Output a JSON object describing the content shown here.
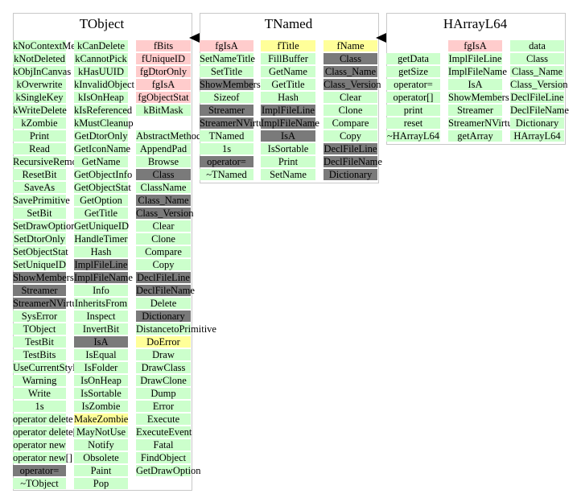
{
  "panels": [
    {
      "name": "tobject",
      "title": "TObject",
      "columns": [
        {
          "items": [
            {
              "text": "kNoContextMenu",
              "color": "green"
            },
            {
              "text": "kNotDeleted",
              "color": "green"
            },
            {
              "text": "kObjInCanvas",
              "color": "green"
            },
            {
              "text": "kOverwrite",
              "color": "green"
            },
            {
              "text": "kSingleKey",
              "color": "green"
            },
            {
              "text": "kWriteDelete",
              "color": "green"
            },
            {
              "text": "kZombie",
              "color": "green"
            },
            {
              "text": "Print",
              "color": "green"
            },
            {
              "text": "Read",
              "color": "green"
            },
            {
              "text": "RecursiveRemove",
              "color": "green"
            },
            {
              "text": "ResetBit",
              "color": "green"
            },
            {
              "text": "SaveAs",
              "color": "green"
            },
            {
              "text": "SavePrimitive",
              "color": "green"
            },
            {
              "text": "SetBit",
              "color": "green"
            },
            {
              "text": "SetDrawOption",
              "color": "green"
            },
            {
              "text": "SetDtorOnly",
              "color": "green"
            },
            {
              "text": "SetObjectStat",
              "color": "green"
            },
            {
              "text": "SetUniqueID",
              "color": "green"
            },
            {
              "text": "ShowMembers",
              "color": "gray"
            },
            {
              "text": "Streamer",
              "color": "gray"
            },
            {
              "text": "StreamerNVirtual",
              "color": "gray"
            },
            {
              "text": "SysError",
              "color": "green"
            },
            {
              "text": "TObject",
              "color": "green"
            },
            {
              "text": "TestBit",
              "color": "green"
            },
            {
              "text": "TestBits",
              "color": "green"
            },
            {
              "text": "UseCurrentStyle",
              "color": "green"
            },
            {
              "text": "Warning",
              "color": "green"
            },
            {
              "text": "Write",
              "color": "green"
            },
            {
              "text": "1s",
              "color": "green"
            },
            {
              "text": "operator delete",
              "color": "green"
            },
            {
              "text": "operator delete[]",
              "color": "green"
            },
            {
              "text": "operator new",
              "color": "green"
            },
            {
              "text": "operator new[]",
              "color": "green"
            },
            {
              "text": "operator=",
              "color": "gray"
            },
            {
              "text": "~TObject",
              "color": "green"
            }
          ]
        },
        {
          "items": [
            {
              "text": "kCanDelete",
              "color": "green"
            },
            {
              "text": "kCannotPick",
              "color": "green"
            },
            {
              "text": "kHasUUID",
              "color": "green"
            },
            {
              "text": "kInvalidObject",
              "color": "green"
            },
            {
              "text": "kIsOnHeap",
              "color": "green"
            },
            {
              "text": "kIsReferenced",
              "color": "green"
            },
            {
              "text": "kMustCleanup",
              "color": "green"
            },
            {
              "text": "GetDtorOnly",
              "color": "green"
            },
            {
              "text": "GetIconName",
              "color": "green"
            },
            {
              "text": "GetName",
              "color": "green"
            },
            {
              "text": "GetObjectInfo",
              "color": "green"
            },
            {
              "text": "GetObjectStat",
              "color": "green"
            },
            {
              "text": "GetOption",
              "color": "green"
            },
            {
              "text": "GetTitle",
              "color": "green"
            },
            {
              "text": "GetUniqueID",
              "color": "green"
            },
            {
              "text": "HandleTimer",
              "color": "green"
            },
            {
              "text": "Hash",
              "color": "green"
            },
            {
              "text": "ImplFileLine",
              "color": "gray"
            },
            {
              "text": "ImplFileName",
              "color": "gray"
            },
            {
              "text": "Info",
              "color": "green"
            },
            {
              "text": "InheritsFrom",
              "color": "green"
            },
            {
              "text": "Inspect",
              "color": "green"
            },
            {
              "text": "InvertBit",
              "color": "green"
            },
            {
              "text": "IsA",
              "color": "gray"
            },
            {
              "text": "IsEqual",
              "color": "green"
            },
            {
              "text": "IsFolder",
              "color": "green"
            },
            {
              "text": "IsOnHeap",
              "color": "green"
            },
            {
              "text": "IsSortable",
              "color": "green"
            },
            {
              "text": "IsZombie",
              "color": "green"
            },
            {
              "text": "MakeZombie",
              "color": "yellow"
            },
            {
              "text": "MayNotUse",
              "color": "green"
            },
            {
              "text": "Notify",
              "color": "green"
            },
            {
              "text": "Obsolete",
              "color": "green"
            },
            {
              "text": "Paint",
              "color": "green"
            },
            {
              "text": "Pop",
              "color": "green"
            }
          ]
        },
        {
          "items": [
            {
              "text": "fBits",
              "color": "pink"
            },
            {
              "text": "fUniqueID",
              "color": "pink"
            },
            {
              "text": "fgDtorOnly",
              "color": "pink"
            },
            {
              "text": "fgIsA",
              "color": "pink"
            },
            {
              "text": "fgObjectStat",
              "color": "pink"
            },
            {
              "text": "kBitMask",
              "color": "green"
            },
            {
              "text": "",
              "color": "none"
            },
            {
              "text": "AbstractMethod",
              "color": "green"
            },
            {
              "text": "AppendPad",
              "color": "green"
            },
            {
              "text": "Browse",
              "color": "green"
            },
            {
              "text": "Class",
              "color": "gray"
            },
            {
              "text": "ClassName",
              "color": "green"
            },
            {
              "text": "Class_Name",
              "color": "gray"
            },
            {
              "text": "Class_Version",
              "color": "gray"
            },
            {
              "text": "Clear",
              "color": "green"
            },
            {
              "text": "Clone",
              "color": "green"
            },
            {
              "text": "Compare",
              "color": "green"
            },
            {
              "text": "Copy",
              "color": "green"
            },
            {
              "text": "DeclFileLine",
              "color": "gray"
            },
            {
              "text": "DeclFileName",
              "color": "gray"
            },
            {
              "text": "Delete",
              "color": "green"
            },
            {
              "text": "Dictionary",
              "color": "gray"
            },
            {
              "text": "DistancetoPrimitive",
              "color": "green"
            },
            {
              "text": "DoError",
              "color": "yellow"
            },
            {
              "text": "Draw",
              "color": "green"
            },
            {
              "text": "DrawClass",
              "color": "green"
            },
            {
              "text": "DrawClone",
              "color": "green"
            },
            {
              "text": "Dump",
              "color": "green"
            },
            {
              "text": "Error",
              "color": "green"
            },
            {
              "text": "Execute",
              "color": "green"
            },
            {
              "text": "ExecuteEvent",
              "color": "green"
            },
            {
              "text": "Fatal",
              "color": "green"
            },
            {
              "text": "FindObject",
              "color": "green"
            },
            {
              "text": "GetDrawOption",
              "color": "green"
            }
          ]
        }
      ]
    },
    {
      "name": "tnamed",
      "title": "TNamed",
      "columns": [
        {
          "items": [
            {
              "text": "fgIsA",
              "color": "pink"
            },
            {
              "text": "SetNameTitle",
              "color": "green"
            },
            {
              "text": "SetTitle",
              "color": "green"
            },
            {
              "text": "ShowMembers",
              "color": "gray"
            },
            {
              "text": "Sizeof",
              "color": "green"
            },
            {
              "text": "Streamer",
              "color": "gray"
            },
            {
              "text": "StreamerNVirtual",
              "color": "gray"
            },
            {
              "text": "TNamed",
              "color": "green"
            },
            {
              "text": "1s",
              "color": "green"
            },
            {
              "text": "operator=",
              "color": "gray"
            },
            {
              "text": "~TNamed",
              "color": "green"
            }
          ]
        },
        {
          "items": [
            {
              "text": "fTitle",
              "color": "yellow"
            },
            {
              "text": "FillBuffer",
              "color": "green"
            },
            {
              "text": "GetName",
              "color": "green"
            },
            {
              "text": "GetTitle",
              "color": "green"
            },
            {
              "text": "Hash",
              "color": "green"
            },
            {
              "text": "ImplFileLine",
              "color": "gray"
            },
            {
              "text": "ImplFileName",
              "color": "gray"
            },
            {
              "text": "IsA",
              "color": "gray"
            },
            {
              "text": "IsSortable",
              "color": "green"
            },
            {
              "text": "Print",
              "color": "green"
            },
            {
              "text": "SetName",
              "color": "green"
            }
          ]
        },
        {
          "items": [
            {
              "text": "fName",
              "color": "yellow"
            },
            {
              "text": "Class",
              "color": "gray"
            },
            {
              "text": "Class_Name",
              "color": "gray"
            },
            {
              "text": "Class_Version",
              "color": "gray"
            },
            {
              "text": "Clear",
              "color": "green"
            },
            {
              "text": "Clone",
              "color": "green"
            },
            {
              "text": "Compare",
              "color": "green"
            },
            {
              "text": "Copy",
              "color": "green"
            },
            {
              "text": "DeclFileLine",
              "color": "gray"
            },
            {
              "text": "DeclFileName",
              "color": "gray"
            },
            {
              "text": "Dictionary",
              "color": "gray"
            }
          ]
        }
      ]
    },
    {
      "name": "harrayl64",
      "title": "HArrayL64",
      "columns": [
        {
          "items": [
            {
              "text": "",
              "color": "none"
            },
            {
              "text": "getData",
              "color": "green"
            },
            {
              "text": "getSize",
              "color": "green"
            },
            {
              "text": "operator=",
              "color": "green"
            },
            {
              "text": "operator[]",
              "color": "green"
            },
            {
              "text": "print",
              "color": "green"
            },
            {
              "text": "reset",
              "color": "green"
            },
            {
              "text": "~HArrayL64",
              "color": "green"
            }
          ]
        },
        {
          "items": [
            {
              "text": "fgIsA",
              "color": "pink"
            },
            {
              "text": "ImplFileLine",
              "color": "green"
            },
            {
              "text": "ImplFileName",
              "color": "green"
            },
            {
              "text": "IsA",
              "color": "green"
            },
            {
              "text": "ShowMembers",
              "color": "green"
            },
            {
              "text": "Streamer",
              "color": "green"
            },
            {
              "text": "StreamerNVirtual",
              "color": "green"
            },
            {
              "text": "getArray",
              "color": "green"
            }
          ]
        },
        {
          "items": [
            {
              "text": "data",
              "color": "green"
            },
            {
              "text": "Class",
              "color": "green"
            },
            {
              "text": "Class_Name",
              "color": "green"
            },
            {
              "text": "Class_Version",
              "color": "green"
            },
            {
              "text": "DeclFileLine",
              "color": "green"
            },
            {
              "text": "DeclFileName",
              "color": "green"
            },
            {
              "text": "Dictionary",
              "color": "green"
            },
            {
              "text": "HArrayL64",
              "color": "green"
            }
          ]
        }
      ]
    }
  ],
  "inheritance_arrows": [
    {
      "from": "TNamed",
      "to": "TObject"
    },
    {
      "from": "HArrayL64",
      "to": "TNamed"
    }
  ]
}
